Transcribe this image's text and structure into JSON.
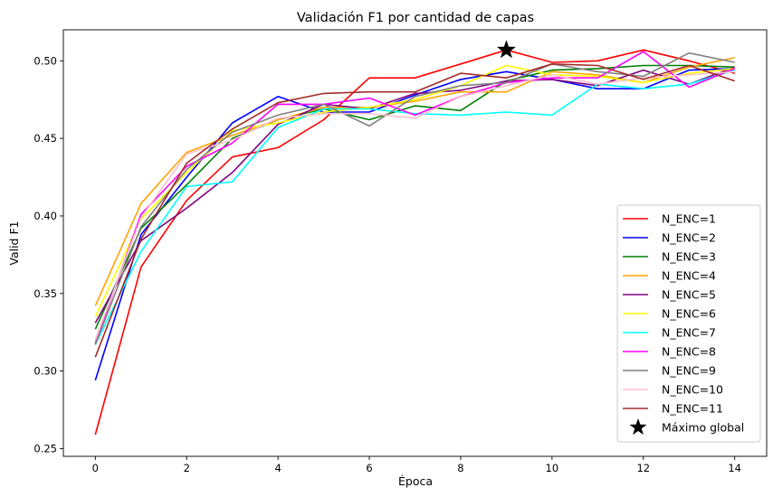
{
  "chart_data": {
    "type": "line",
    "title": "Validación F1 por cantidad de capas",
    "xlabel": "Época",
    "ylabel": "Valid F1",
    "xlim": [
      -0.7,
      14.7
    ],
    "ylim": [
      0.245,
      0.52
    ],
    "xticks": [
      0,
      2,
      4,
      6,
      8,
      10,
      12,
      14
    ],
    "yticks": [
      0.25,
      0.3,
      0.35,
      0.4,
      0.45,
      0.5
    ],
    "ytick_labels": [
      "0.25",
      "0.30",
      "0.35",
      "0.40",
      "0.45",
      "0.50"
    ],
    "grid": false,
    "legend_position": "lower-right",
    "x": [
      0,
      1,
      2,
      3,
      4,
      5,
      6,
      7,
      8,
      9,
      10,
      11,
      12,
      13,
      14
    ],
    "series": [
      {
        "name": "N_ENC=1",
        "color": "#ff0000",
        "values": [
          0.259,
          0.367,
          0.41,
          0.438,
          0.444,
          0.462,
          0.489,
          0.489,
          0.498,
          0.507,
          0.499,
          0.5,
          0.507,
          0.5,
          0.492
        ]
      },
      {
        "name": "N_ENC=2",
        "color": "#0000ff",
        "values": [
          0.294,
          0.388,
          0.425,
          0.46,
          0.477,
          0.467,
          0.467,
          0.478,
          0.488,
          0.493,
          0.488,
          0.482,
          0.482,
          0.494,
          0.495
        ]
      },
      {
        "name": "N_ENC=3",
        "color": "#008000",
        "values": [
          0.327,
          0.392,
          0.42,
          0.45,
          0.462,
          0.469,
          0.462,
          0.471,
          0.468,
          0.487,
          0.494,
          0.495,
          0.497,
          0.497,
          0.496
        ]
      },
      {
        "name": "N_ENC=4",
        "color": "#ffa500",
        "values": [
          0.342,
          0.408,
          0.441,
          0.452,
          0.462,
          0.47,
          0.47,
          0.474,
          0.48,
          0.48,
          0.493,
          0.491,
          0.486,
          0.496,
          0.502
        ]
      },
      {
        "name": "N_ENC=5",
        "color": "#800080",
        "values": [
          0.331,
          0.384,
          0.405,
          0.428,
          0.459,
          0.472,
          0.469,
          0.479,
          0.481,
          0.487,
          0.488,
          0.484,
          0.494,
          0.485,
          0.496
        ]
      },
      {
        "name": "N_ENC=6",
        "color": "#ffff00",
        "values": [
          0.335,
          0.398,
          0.428,
          0.455,
          0.46,
          0.467,
          0.47,
          0.475,
          0.484,
          0.497,
          0.491,
          0.49,
          0.486,
          0.492,
          0.495
        ]
      },
      {
        "name": "N_ENC=7",
        "color": "#00ffff",
        "values": [
          0.317,
          0.377,
          0.419,
          0.422,
          0.457,
          0.469,
          0.469,
          0.466,
          0.465,
          0.467,
          0.465,
          0.485,
          0.482,
          0.485,
          0.494
        ]
      },
      {
        "name": "N_ENC=8",
        "color": "#ff00ff",
        "values": [
          0.318,
          0.401,
          0.432,
          0.447,
          0.472,
          0.472,
          0.476,
          0.465,
          0.477,
          0.486,
          0.489,
          0.489,
          0.506,
          0.483,
          0.495
        ]
      },
      {
        "name": "N_ENC=9",
        "color": "#808080",
        "values": [
          0.317,
          0.393,
          0.43,
          0.454,
          0.465,
          0.472,
          0.458,
          0.477,
          0.484,
          0.486,
          0.498,
          0.493,
          0.49,
          0.505,
          0.499
        ]
      },
      {
        "name": "N_ENC=10",
        "color": "#ffc0cb",
        "values": [
          0.32,
          0.399,
          0.44,
          0.449,
          0.463,
          0.466,
          0.466,
          0.463,
          0.477,
          0.484,
          0.491,
          0.485,
          0.489,
          0.491,
          0.493
        ]
      },
      {
        "name": "N_ENC=11",
        "color": "#a52a2a",
        "values": [
          0.309,
          0.385,
          0.434,
          0.456,
          0.473,
          0.479,
          0.48,
          0.48,
          0.492,
          0.489,
          0.498,
          0.497,
          0.488,
          0.497,
          0.487
        ]
      }
    ],
    "global_max": {
      "label": "Máximo global",
      "x": 9,
      "y": 0.507,
      "color": "#000000"
    }
  }
}
